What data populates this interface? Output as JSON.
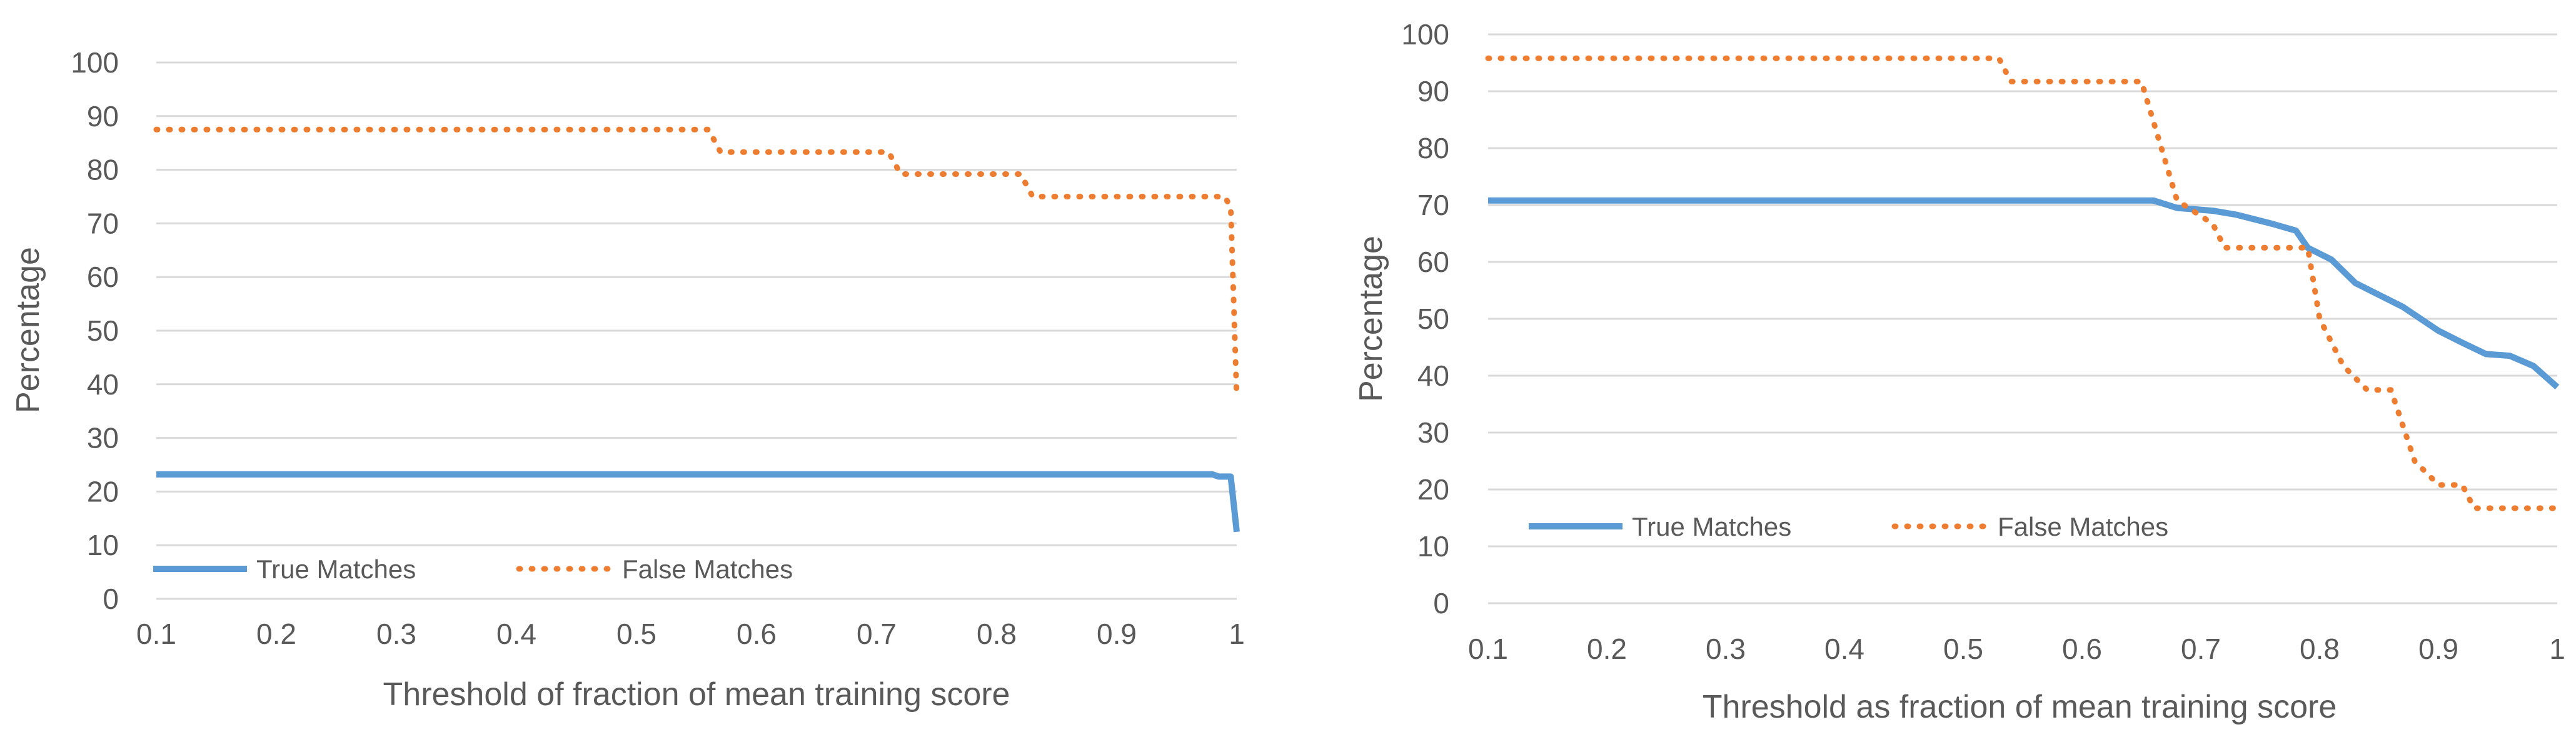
{
  "chart_data": [
    {
      "type": "line",
      "title": "",
      "xlabel": "Threshold of fraction of mean training score",
      "ylabel": "Percentage",
      "xlim": [
        0.1,
        1
      ],
      "ylim": [
        0,
        100
      ],
      "x_ticks": [
        "0.1",
        "0.2",
        "0.3",
        "0.4",
        "0.5",
        "0.6",
        "0.7",
        "0.8",
        "0.9",
        "1"
      ],
      "y_ticks": [
        "0",
        "10",
        "20",
        "30",
        "40",
        "50",
        "60",
        "70",
        "80",
        "90",
        "100"
      ],
      "grid": true,
      "legend": "bottom-left",
      "series": [
        {
          "name": "True Matches",
          "color": "#5b9bd5",
          "style": "solid",
          "points": [
            [
              0.1,
              23.2
            ],
            [
              0.98,
              23.2
            ],
            [
              0.985,
              22.8
            ],
            [
              0.995,
              22.8
            ],
            [
              1.0,
              12.5
            ]
          ]
        },
        {
          "name": "False Matches",
          "color": "#ed7d31",
          "style": "dotted",
          "points": [
            [
              0.1,
              87.5
            ],
            [
              0.56,
              87.5
            ],
            [
              0.57,
              83.3
            ],
            [
              0.71,
              83.3
            ],
            [
              0.72,
              79.2
            ],
            [
              0.82,
              79.2
            ],
            [
              0.83,
              75.0
            ],
            [
              0.99,
              75.0
            ],
            [
              0.995,
              73.0
            ],
            [
              1.0,
              37.5
            ]
          ]
        }
      ]
    },
    {
      "type": "line",
      "title": "",
      "xlabel": "Threshold as fraction of mean training score",
      "ylabel": "Percentage",
      "xlim": [
        0.1,
        1
      ],
      "ylim": [
        0,
        100
      ],
      "x_ticks": [
        "0.1",
        "0.2",
        "0.3",
        "0.4",
        "0.5",
        "0.6",
        "0.7",
        "0.8",
        "0.9",
        "1"
      ],
      "y_ticks": [
        "0",
        "10",
        "20",
        "30",
        "40",
        "50",
        "60",
        "70",
        "80",
        "90",
        "100"
      ],
      "grid": true,
      "legend": "bottom-left",
      "series": [
        {
          "name": "True Matches",
          "color": "#5b9bd5",
          "style": "solid",
          "points": [
            [
              0.1,
              70.8
            ],
            [
              0.66,
              70.8
            ],
            [
              0.68,
              69.5
            ],
            [
              0.71,
              69.0
            ],
            [
              0.73,
              68.3
            ],
            [
              0.76,
              66.7
            ],
            [
              0.78,
              65.5
            ],
            [
              0.79,
              62.5
            ],
            [
              0.81,
              60.4
            ],
            [
              0.83,
              56.3
            ],
            [
              0.85,
              54.2
            ],
            [
              0.87,
              52.1
            ],
            [
              0.9,
              47.9
            ],
            [
              0.92,
              45.8
            ],
            [
              0.94,
              43.8
            ],
            [
              0.96,
              43.5
            ],
            [
              0.98,
              41.7
            ],
            [
              1.0,
              38.0
            ]
          ]
        },
        {
          "name": "False Matches",
          "color": "#ed7d31",
          "style": "dotted",
          "points": [
            [
              0.1,
              95.8
            ],
            [
              0.53,
              95.8
            ],
            [
              0.54,
              91.7
            ],
            [
              0.65,
              91.7
            ],
            [
              0.68,
              70.8
            ],
            [
              0.71,
              66.7
            ],
            [
              0.72,
              62.5
            ],
            [
              0.79,
              62.5
            ],
            [
              0.8,
              50.0
            ],
            [
              0.82,
              41.7
            ],
            [
              0.84,
              37.5
            ],
            [
              0.86,
              37.5
            ],
            [
              0.88,
              25.0
            ],
            [
              0.9,
              20.8
            ],
            [
              0.92,
              20.8
            ],
            [
              0.93,
              16.7
            ],
            [
              1.0,
              16.7
            ]
          ]
        }
      ]
    }
  ]
}
